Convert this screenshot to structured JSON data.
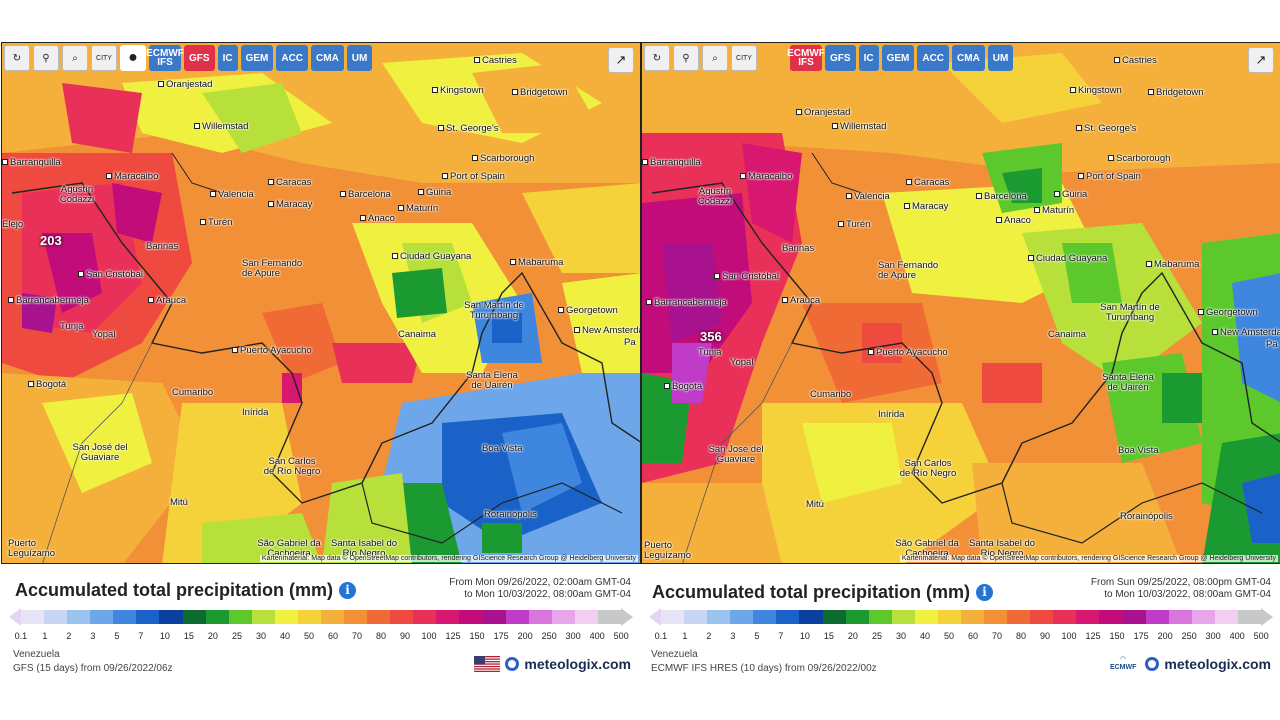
{
  "toolbar": {
    "buttons": [
      "↻",
      "⚲",
      "⌕",
      "CITY",
      "●"
    ],
    "models_left": [
      "ECMWF IFS",
      "GFS",
      "IC",
      "GEM",
      "ACC",
      "CMA",
      "UM"
    ],
    "models_right": [
      "ECMWF IFS",
      "GFS",
      "IC",
      "GEM",
      "ACC",
      "CMA",
      "UM"
    ],
    "active_left": "GFS",
    "active_right": "ECMWF IFS",
    "share": "↗"
  },
  "left": {
    "legend_title": "Accumulated total precipitation (mm)",
    "period_from": "From Mon 09/26/2022, 02:00am GMT-04",
    "period_to": "to Mon 10/03/2022, 08:00am GMT-04",
    "region": "Venezuela",
    "model_run": "GFS (15 days) from 09/26/2022/06z",
    "brand": "meteologix.com",
    "max_value": "203",
    "attribution": "Kartenmaterial: Map data © OpenStreetMap contributors, rendering GIScience Research Group @ Heidelberg University"
  },
  "right": {
    "legend_title": "Accumulated total precipitation (mm)",
    "period_from": "From Sun 09/25/2022, 08:00pm GMT-04",
    "period_to": "to Mon 10/03/2022, 08:00am GMT-04",
    "region": "Venezuela",
    "model_run": "ECMWF IFS HRES (10 days) from 09/26/2022/00z",
    "brand": "meteologix.com",
    "ecmwf_logo": "ECMWF",
    "max_value": "356",
    "attribution": "Kartenmaterial: Map data © OpenStreetMap contributors, rendering GIScience Research Group @ Heidelberg University"
  },
  "scale": {
    "labels": [
      "0.1",
      "1",
      "2",
      "3",
      "5",
      "7",
      "10",
      "15",
      "20",
      "25",
      "30",
      "40",
      "50",
      "60",
      "70",
      "80",
      "90",
      "100",
      "125",
      "150",
      "175",
      "200",
      "250",
      "300",
      "400",
      "500"
    ],
    "colors": [
      "#e8e4f6",
      "#c6d6f4",
      "#9cc2f0",
      "#6ea6ea",
      "#3f86de",
      "#1a62c8",
      "#0a3f9e",
      "#0b6c2e",
      "#1c9a32",
      "#5cc82c",
      "#b8e03a",
      "#f0f040",
      "#f6d23a",
      "#f4b03a",
      "#f29038",
      "#f06a36",
      "#ee4a40",
      "#e83058",
      "#d81870",
      "#c20c7a",
      "#a8128e",
      "#c03cc8",
      "#d876de",
      "#e8a6ea",
      "#f2cef2",
      "#c8c8c8"
    ]
  },
  "cities": [
    "Castries",
    "Kingstown",
    "Bridgetown",
    "St. George's",
    "Oranjestad",
    "Willemstad",
    "Scarborough",
    "Port of Spain",
    "Barranquilla",
    "Maracaibo",
    "Agustín Codazzi",
    "Caracas",
    "Valencia",
    "Maracay",
    "Barcelona",
    "Güiria",
    "Anaco",
    "Maturín",
    "Turén",
    "Barinas",
    "Ciudad Guayana",
    "Mabaruma",
    "San Cristóbal",
    "San Fernando de Apure",
    "Barrancabermeja",
    "Arauca",
    "San Martín de Turumbang",
    "Georgetown",
    "New Amsterdam",
    "Canaima",
    "Puerto Ayacucho",
    "Tunja",
    "Yopal",
    "Santa Elena de Uairén",
    "Bogotá",
    "Cumaribo",
    "Inírida",
    "Boa Vista",
    "San José del Guaviare",
    "San Carlos de Río Negro",
    "Mitú",
    "Rorainópolis",
    "São Gabriel da Cachoeira",
    "Santa Isabel do Rio Negro",
    "Puerto Leguízamo",
    "Elejo",
    "Pa"
  ]
}
